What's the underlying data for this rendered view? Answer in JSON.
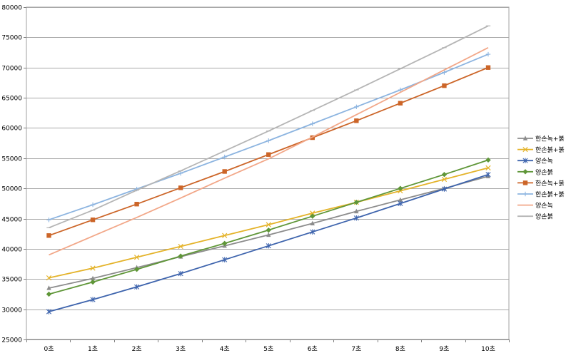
{
  "chart_data": {
    "type": "line",
    "categories": [
      "0초",
      "1초",
      "2초",
      "3초",
      "4초",
      "5초",
      "6초",
      "7초",
      "8초",
      "9초",
      "10초"
    ],
    "ylim": [
      25000,
      80000
    ],
    "yticks": [
      25000,
      30000,
      35000,
      40000,
      45000,
      50000,
      55000,
      60000,
      65000,
      70000,
      75000,
      80000
    ],
    "grid": true,
    "legend_position": "right",
    "series": [
      {
        "name": "한손녹+붉",
        "color": "#8c8c8c",
        "marker": "triangle",
        "values": [
          33500,
          35100,
          36900,
          38700,
          40500,
          42300,
          44200,
          46200,
          48100,
          50000,
          52000
        ]
      },
      {
        "name": "한손붉+붉",
        "color": "#e4b32a",
        "marker": "x",
        "values": [
          35200,
          36800,
          38600,
          40400,
          42200,
          44000,
          45900,
          47700,
          49600,
          51500,
          53400
        ]
      },
      {
        "name": "양손녹",
        "color": "#3e64ad",
        "marker": "star",
        "values": [
          29600,
          31600,
          33700,
          35900,
          38200,
          40500,
          42800,
          45100,
          47500,
          49900,
          52300
        ]
      },
      {
        "name": "양손붉",
        "color": "#5f9638",
        "marker": "diamond",
        "values": [
          32500,
          34500,
          36600,
          38800,
          40900,
          43100,
          45400,
          47700,
          50000,
          52300,
          54700
        ]
      },
      {
        "name": "한손녹+붉",
        "color": "#cc6528",
        "marker": "square",
        "values": [
          42200,
          44800,
          47400,
          50100,
          52800,
          55600,
          58400,
          61200,
          64100,
          67000,
          70000
        ]
      },
      {
        "name": "한손붉+붉",
        "color": "#8cb4e0",
        "marker": "plus",
        "values": [
          44800,
          47300,
          49900,
          52500,
          55200,
          57900,
          60700,
          63500,
          66300,
          69200,
          72200
        ]
      },
      {
        "name": "양손녹",
        "color": "#f2a788",
        "marker": "none",
        "values": [
          39000,
          42100,
          45200,
          48400,
          51700,
          54900,
          58500,
          62200,
          65900,
          69600,
          73300
        ]
      },
      {
        "name": "양손붉",
        "color": "#b5b5b5",
        "marker": "dash",
        "values": [
          43500,
          46400,
          49700,
          52900,
          56200,
          59500,
          62900,
          66300,
          69800,
          73300,
          76900
        ]
      }
    ]
  }
}
